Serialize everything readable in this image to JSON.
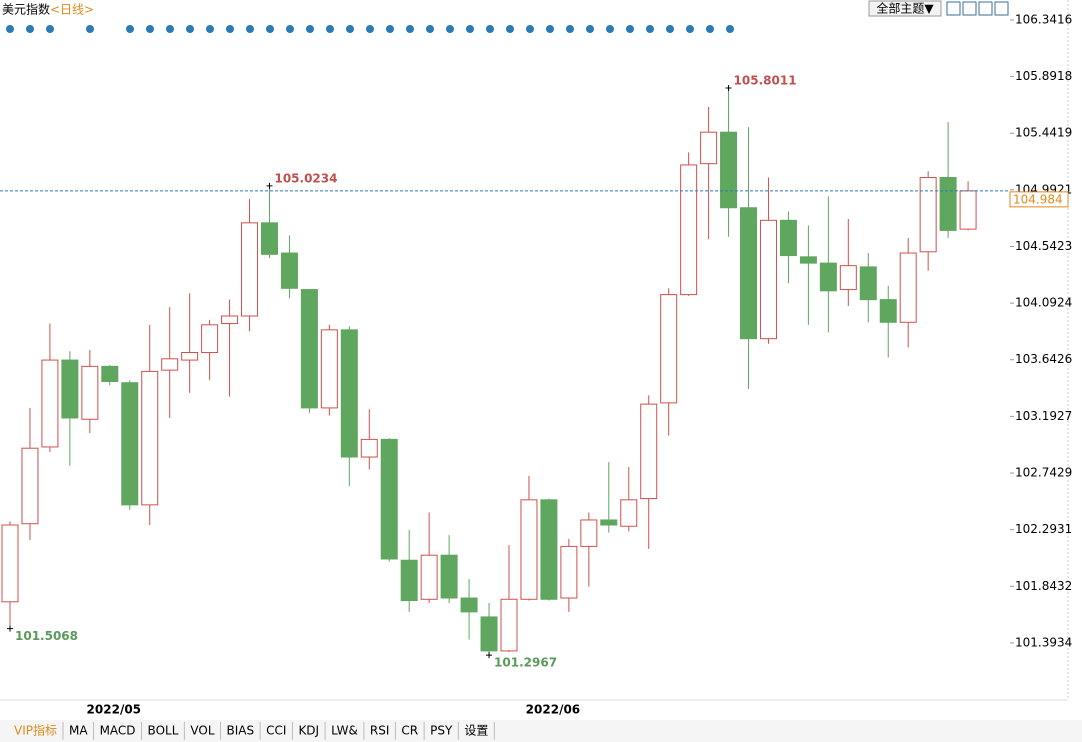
{
  "header": {
    "title": "美元指数",
    "period": "<日线>"
  },
  "toolbar": {
    "theme_button": "全部主题▼"
  },
  "tabs": [
    "VIP指标",
    "MA",
    "MACD",
    "BOLL",
    "VOL",
    "BIAS",
    "CCI",
    "KDJ",
    "LW&",
    "RSI",
    "CR",
    "PSY",
    "设置"
  ],
  "chart_data": {
    "type": "candlestick",
    "categories": [
      null,
      null,
      null,
      null,
      null,
      "2022/05",
      null,
      null,
      null,
      null,
      null,
      null,
      null,
      null,
      null,
      null,
      null,
      null,
      null,
      null,
      null,
      null,
      null,
      null,
      null,
      null,
      null,
      "2022/06",
      null,
      null,
      null,
      null,
      null,
      null,
      null,
      null,
      null,
      null,
      null,
      null,
      null,
      null,
      null,
      null,
      null,
      null,
      null,
      null,
      null
    ],
    "open": [
      101.72,
      102.34,
      102.95,
      103.64,
      103.17,
      103.59,
      103.46,
      102.49,
      103.56,
      103.64,
      103.7,
      103.93,
      103.99,
      104.73,
      104.49,
      104.2,
      103.26,
      103.88,
      102.87,
      103.01,
      102.05,
      101.74,
      102.09,
      101.75,
      101.6,
      101.33,
      101.74,
      102.53,
      101.75,
      102.16,
      102.37,
      102.32,
      102.54,
      103.3,
      104.16,
      105.2,
      105.45,
      104.85,
      103.81,
      104.75,
      104.46,
      104.41,
      104.2,
      104.38,
      104.12,
      103.94,
      104.5,
      105.09,
      104.68
    ],
    "high": [
      102.36,
      103.26,
      103.93,
      103.71,
      103.72,
      103.6,
      103.48,
      103.92,
      104.06,
      104.17,
      103.96,
      104.12,
      104.92,
      105.0234,
      104.63,
      104.2,
      103.92,
      103.91,
      103.25,
      103.02,
      102.29,
      102.43,
      102.25,
      101.9,
      101.71,
      102.17,
      102.72,
      102.54,
      102.22,
      102.43,
      102.83,
      102.79,
      103.36,
      104.21,
      105.29,
      105.65,
      105.8011,
      105.49,
      105.09,
      104.82,
      104.71,
      104.94,
      104.76,
      104.49,
      104.23,
      104.61,
      105.14,
      105.53,
      105.06
    ],
    "low": [
      101.5068,
      102.21,
      102.91,
      102.8,
      103.06,
      103.44,
      102.45,
      102.33,
      103.18,
      103.38,
      103.48,
      103.35,
      103.87,
      104.45,
      104.13,
      103.22,
      103.2,
      102.64,
      102.77,
      102.04,
      101.64,
      101.71,
      101.71,
      101.42,
      101.2967,
      101.32,
      101.73,
      101.73,
      101.64,
      101.84,
      102.27,
      102.28,
      102.14,
      103.04,
      104.15,
      104.6,
      104.62,
      103.41,
      103.77,
      104.25,
      103.92,
      103.86,
      104.07,
      103.94,
      103.66,
      103.74,
      104.35,
      104.61,
      104.67
    ],
    "close": [
      102.33,
      102.94,
      103.64,
      103.18,
      103.59,
      103.47,
      102.49,
      103.55,
      103.65,
      103.7,
      103.92,
      103.99,
      104.73,
      104.48,
      104.21,
      103.26,
      103.88,
      102.87,
      103.01,
      102.06,
      101.73,
      102.09,
      101.75,
      101.64,
      101.33,
      101.74,
      102.53,
      101.74,
      102.16,
      102.37,
      102.33,
      102.53,
      103.29,
      104.16,
      105.19,
      105.45,
      104.85,
      103.81,
      104.75,
      104.47,
      104.41,
      104.19,
      104.39,
      104.12,
      103.94,
      104.49,
      105.09,
      104.67,
      104.984
    ],
    "up_color": "#d0504c",
    "down_color": "#5fa65f",
    "ylim": [
      100.94,
      106.5
    ],
    "yticks": [
      106.3416,
      105.8918,
      105.4419,
      104.9921,
      104.5423,
      104.0924,
      103.6426,
      103.1927,
      102.7429,
      102.2931,
      101.8432,
      101.3934
    ],
    "labeled_extremes": [
      {
        "field": "high",
        "index": 13
      },
      {
        "field": "low",
        "index": 0
      },
      {
        "field": "high",
        "index": 36
      },
      {
        "field": "low",
        "index": 24
      }
    ],
    "last_price_line": true
  }
}
